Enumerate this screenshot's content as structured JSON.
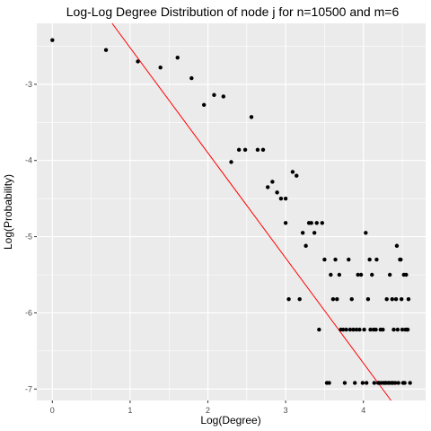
{
  "chart_data": {
    "type": "scatter",
    "title": "Log-Log Degree Distribution of node j for n=10500 and m=6",
    "xlabel": "Log(Degree)",
    "ylabel": "Log(Probability)",
    "xlim": [
      -0.2,
      4.8
    ],
    "ylim": [
      -7.15,
      -2.2
    ],
    "x_ticks": [
      0,
      1,
      2,
      3,
      4
    ],
    "y_ticks": [
      -7,
      -6,
      -5,
      -4,
      -3
    ],
    "grid": true,
    "background": "#ebebeb",
    "grid_color": "#ffffff",
    "point_color": "#000000",
    "fit_line": {
      "slope": -1.38,
      "intercept": -1.14,
      "color": "#ff0000"
    },
    "points": [
      [
        0.0,
        -2.42
      ],
      [
        0.69,
        -2.55
      ],
      [
        1.1,
        -2.7
      ],
      [
        1.39,
        -2.78
      ],
      [
        1.61,
        -2.65
      ],
      [
        1.79,
        -2.92
      ],
      [
        1.95,
        -3.27
      ],
      [
        2.08,
        -3.14
      ],
      [
        2.2,
        -3.16
      ],
      [
        2.3,
        -4.02
      ],
      [
        2.4,
        -3.86
      ],
      [
        2.48,
        -3.86
      ],
      [
        2.56,
        -3.43
      ],
      [
        2.64,
        -3.86
      ],
      [
        2.71,
        -3.86
      ],
      [
        2.77,
        -4.35
      ],
      [
        2.83,
        -4.28
      ],
      [
        2.89,
        -4.42
      ],
      [
        2.94,
        -4.5
      ],
      [
        3.0,
        -4.5
      ],
      [
        3.0,
        -4.82
      ],
      [
        3.04,
        -5.82
      ],
      [
        3.09,
        -4.15
      ],
      [
        3.14,
        -4.2
      ],
      [
        3.18,
        -5.82
      ],
      [
        3.22,
        -4.95
      ],
      [
        3.26,
        -5.12
      ],
      [
        3.3,
        -4.82
      ],
      [
        3.33,
        -4.82
      ],
      [
        3.37,
        -4.95
      ],
      [
        3.4,
        -4.82
      ],
      [
        3.43,
        -6.22
      ],
      [
        3.47,
        -4.82
      ],
      [
        3.5,
        -5.3
      ],
      [
        3.53,
        -6.92
      ],
      [
        3.56,
        -6.92
      ],
      [
        3.58,
        -5.5
      ],
      [
        3.61,
        -5.82
      ],
      [
        3.64,
        -5.3
      ],
      [
        3.66,
        -5.82
      ],
      [
        3.69,
        -5.5
      ],
      [
        3.71,
        -6.22
      ],
      [
        3.74,
        -6.22
      ],
      [
        3.76,
        -6.92
      ],
      [
        3.78,
        -6.22
      ],
      [
        3.81,
        -5.3
      ],
      [
        3.83,
        -6.22
      ],
      [
        3.85,
        -5.82
      ],
      [
        3.87,
        -6.22
      ],
      [
        3.89,
        -6.92
      ],
      [
        3.91,
        -6.22
      ],
      [
        3.93,
        -5.5
      ],
      [
        3.95,
        -6.22
      ],
      [
        3.97,
        -5.5
      ],
      [
        3.99,
        -6.92
      ],
      [
        4.01,
        -6.22
      ],
      [
        4.03,
        -4.95
      ],
      [
        4.04,
        -6.92
      ],
      [
        4.06,
        -5.82
      ],
      [
        4.08,
        -5.3
      ],
      [
        4.09,
        -6.22
      ],
      [
        4.11,
        -5.5
      ],
      [
        4.13,
        -6.22
      ],
      [
        4.14,
        -6.92
      ],
      [
        4.16,
        -6.22
      ],
      [
        4.17,
        -5.3
      ],
      [
        4.19,
        -6.92
      ],
      [
        4.2,
        -6.92
      ],
      [
        4.22,
        -6.22
      ],
      [
        4.23,
        -6.92
      ],
      [
        4.25,
        -6.22
      ],
      [
        4.26,
        -6.92
      ],
      [
        4.28,
        -6.92
      ],
      [
        4.29,
        -6.92
      ],
      [
        4.3,
        -5.82
      ],
      [
        4.32,
        -6.92
      ],
      [
        4.33,
        -6.92
      ],
      [
        4.34,
        -5.5
      ],
      [
        4.36,
        -6.92
      ],
      [
        4.37,
        -5.82
      ],
      [
        4.38,
        -6.92
      ],
      [
        4.39,
        -6.22
      ],
      [
        4.41,
        -6.92
      ],
      [
        4.42,
        -5.82
      ],
      [
        4.43,
        -5.12
      ],
      [
        4.44,
        -6.22
      ],
      [
        4.45,
        -6.92
      ],
      [
        4.47,
        -5.3
      ],
      [
        4.48,
        -5.3
      ],
      [
        4.49,
        -5.82
      ],
      [
        4.5,
        -6.22
      ],
      [
        4.51,
        -6.92
      ],
      [
        4.52,
        -5.5
      ],
      [
        4.53,
        -6.92
      ],
      [
        4.54,
        -6.22
      ],
      [
        4.55,
        -5.5
      ],
      [
        4.56,
        -6.22
      ],
      [
        4.57,
        -6.22
      ],
      [
        4.58,
        -5.82
      ],
      [
        4.6,
        -6.92
      ]
    ]
  }
}
